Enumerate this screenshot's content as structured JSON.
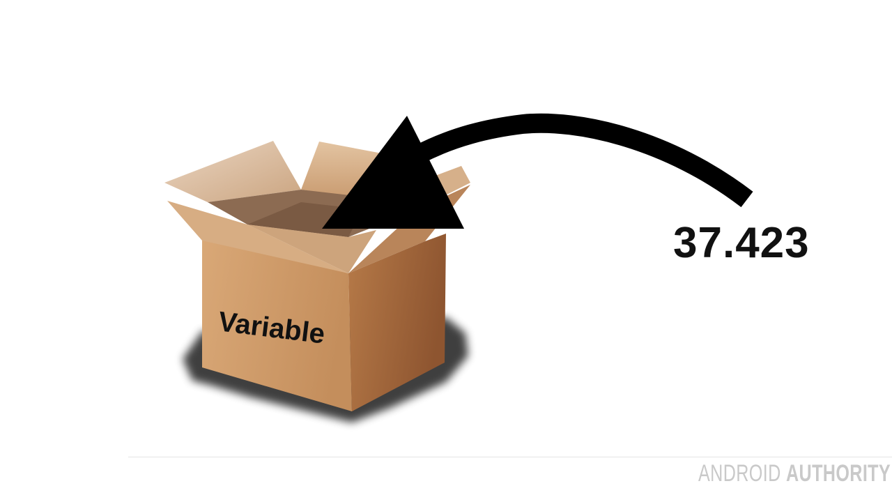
{
  "box": {
    "label": "Variable"
  },
  "value": {
    "text": "37.423"
  },
  "watermark": {
    "part1": "ANDROID",
    "part2": "AUTHORITY"
  },
  "colors": {
    "box_front": "#D09A68",
    "box_side": "#A0643A",
    "box_interior": "#8B6A52",
    "arrow": "#000000",
    "watermark": "#C9C9C9"
  }
}
